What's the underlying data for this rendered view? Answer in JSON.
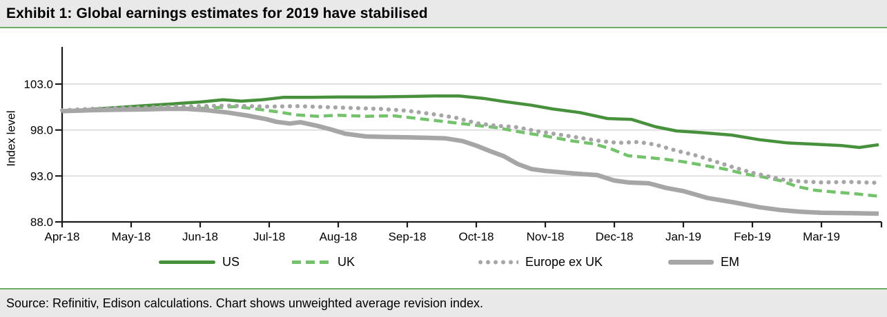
{
  "header": {
    "title": "Exhibit 1: Global earnings estimates for 2019 have stabilised"
  },
  "footer": {
    "source": "Source: Refinitiv, Edison calculations. Chart shows unweighted average revision index."
  },
  "colors": {
    "us_green": "#47913d",
    "uk_green": "#74c36c",
    "gray_series": "#a6a6a6",
    "gridline": "#d6d6d6",
    "axis": "#1a1a1a",
    "bar_background": "#e9e9e9",
    "green_rule": "#6fae62"
  },
  "chart_data": {
    "type": "line",
    "title": "Exhibit 1: Global earnings estimates for 2019 have stabilised",
    "xlabel": "",
    "ylabel": "Index level",
    "ylim": [
      88,
      107
    ],
    "y_ticks": [
      88,
      93,
      98,
      103
    ],
    "y_tick_labels": [
      "88.0",
      "93.0",
      "98.0",
      "103.0"
    ],
    "x_tick_labels": [
      "Apr-18",
      "May-18",
      "Jun-18",
      "Jul-18",
      "Aug-18",
      "Sep-18",
      "Oct-18",
      "Nov-18",
      "Dec-18",
      "Jan-19",
      "Feb-19",
      "Mar-19"
    ],
    "x_units": "months after Apr-18 tick (0 = Apr-18, 11 = Mar-19)",
    "grid": "horizontal",
    "legend_position": "bottom",
    "series": [
      {
        "name": "US",
        "style": "solid",
        "color": "#47913d",
        "width": 4.5,
        "x": [
          0,
          0.4,
          0.8,
          1.2,
          1.6,
          2.0,
          2.33,
          2.6,
          2.9,
          3.2,
          3.6,
          4.0,
          4.5,
          5.0,
          5.4,
          5.75,
          6.1,
          6.4,
          6.8,
          7.1,
          7.5,
          7.9,
          8.25,
          8.6,
          8.9,
          9.3,
          9.7,
          10.1,
          10.5,
          10.9,
          11.3,
          11.55,
          11.83
        ],
        "y": [
          100.0,
          100.25,
          100.45,
          100.65,
          100.85,
          101.05,
          101.3,
          101.15,
          101.3,
          101.55,
          101.55,
          101.6,
          101.6,
          101.65,
          101.7,
          101.7,
          101.45,
          101.1,
          100.7,
          100.3,
          99.9,
          99.25,
          99.15,
          98.35,
          97.9,
          97.7,
          97.45,
          96.95,
          96.6,
          96.45,
          96.3,
          96.1,
          96.4
        ]
      },
      {
        "name": "UK",
        "style": "dashed",
        "color": "#74c36c",
        "width": 4.5,
        "x": [
          0,
          0.4,
          0.8,
          1.2,
          1.6,
          2.0,
          2.5,
          2.8,
          3.1,
          3.4,
          3.7,
          4.0,
          4.4,
          4.8,
          5.1,
          5.5,
          5.9,
          6.3,
          6.7,
          7.0,
          7.4,
          7.7,
          7.95,
          8.2,
          8.5,
          8.75,
          9.0,
          9.3,
          9.6,
          9.9,
          10.15,
          10.4,
          10.65,
          10.9,
          11.2,
          11.5,
          11.83
        ],
        "y": [
          100.1,
          100.2,
          100.3,
          100.35,
          100.4,
          100.35,
          100.55,
          100.3,
          100.0,
          99.65,
          99.5,
          99.6,
          99.5,
          99.55,
          99.3,
          98.95,
          98.6,
          98.25,
          97.7,
          97.35,
          96.8,
          96.5,
          95.95,
          95.2,
          95.0,
          94.8,
          94.55,
          94.15,
          93.75,
          93.2,
          92.9,
          92.5,
          91.85,
          91.45,
          91.25,
          91.05,
          90.8
        ]
      },
      {
        "name": "Europe ex UK",
        "style": "dotted",
        "color": "#a6a6a6",
        "width": 6,
        "x": [
          0,
          0.4,
          0.8,
          1.2,
          1.6,
          2.0,
          2.4,
          2.7,
          3.0,
          3.4,
          3.8,
          4.2,
          4.6,
          5.0,
          5.4,
          5.7,
          6.0,
          6.3,
          6.55,
          6.9,
          7.2,
          7.5,
          7.8,
          8.05,
          8.35,
          8.6,
          8.9,
          9.2,
          9.45,
          9.7,
          10.0,
          10.2,
          10.45,
          10.7,
          11.0,
          11.4,
          11.83
        ],
        "y": [
          100.15,
          100.3,
          100.4,
          100.45,
          100.55,
          100.6,
          100.65,
          100.6,
          100.55,
          100.6,
          100.5,
          100.4,
          100.3,
          100.1,
          99.7,
          99.35,
          98.75,
          98.45,
          98.35,
          97.85,
          97.5,
          97.15,
          96.8,
          96.6,
          96.7,
          96.4,
          95.75,
          95.2,
          94.6,
          94.0,
          93.35,
          93.0,
          92.6,
          92.4,
          92.3,
          92.35,
          92.25
        ]
      },
      {
        "name": "EM",
        "style": "solid",
        "color": "#a6a6a6",
        "width": 6.5,
        "x": [
          0,
          0.4,
          0.8,
          1.2,
          1.5,
          1.8,
          2.1,
          2.4,
          2.7,
          2.95,
          3.1,
          3.3,
          3.45,
          3.7,
          3.9,
          4.1,
          4.4,
          4.7,
          5.0,
          5.3,
          5.55,
          5.8,
          6.0,
          6.2,
          6.4,
          6.6,
          6.8,
          7.0,
          7.3,
          7.55,
          7.75,
          8.0,
          8.2,
          8.5,
          8.75,
          9.0,
          9.35,
          9.75,
          10.1,
          10.4,
          10.7,
          11.0,
          11.4,
          11.83
        ],
        "y": [
          100.05,
          100.15,
          100.2,
          100.25,
          100.3,
          100.3,
          100.15,
          99.9,
          99.55,
          99.2,
          98.9,
          98.7,
          98.85,
          98.45,
          98.05,
          97.6,
          97.3,
          97.25,
          97.2,
          97.15,
          97.1,
          96.8,
          96.3,
          95.7,
          95.15,
          94.3,
          93.75,
          93.55,
          93.35,
          93.2,
          93.1,
          92.5,
          92.3,
          92.2,
          91.7,
          91.35,
          90.6,
          90.1,
          89.6,
          89.3,
          89.1,
          89.0,
          88.95,
          88.9
        ]
      }
    ]
  }
}
